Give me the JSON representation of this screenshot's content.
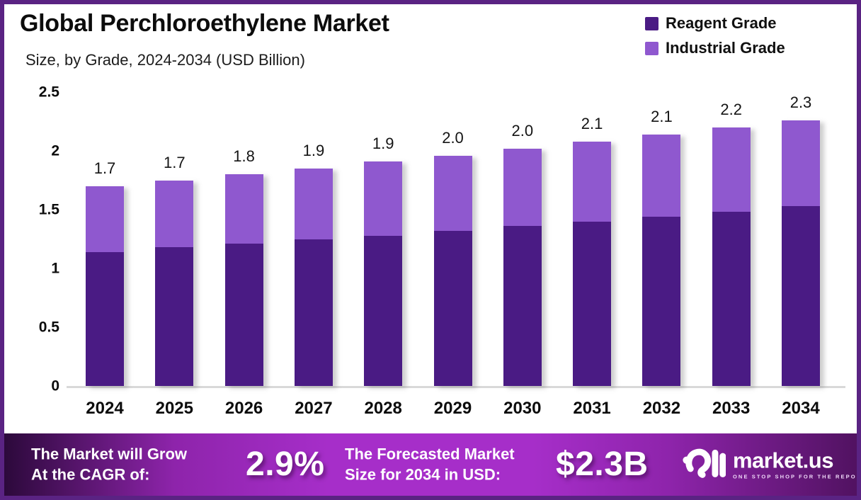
{
  "header": {
    "title": "Global Perchloroethylene Market",
    "subtitle": "Size, by Grade, 2024-2034 (USD Billion)"
  },
  "legend": [
    {
      "label": "Reagent Grade",
      "color": "#4a1b84"
    },
    {
      "label": "Industrial Grade",
      "color": "#8f58cf"
    }
  ],
  "chart_data": {
    "type": "bar",
    "stacked": true,
    "title": "Global Perchloroethylene Market",
    "subtitle": "Size, by Grade, 2024-2034 (USD Billion)",
    "xlabel": "",
    "ylabel": "USD Billion",
    "categories": [
      "2024",
      "2025",
      "2026",
      "2027",
      "2028",
      "2029",
      "2030",
      "2031",
      "2032",
      "2033",
      "2034"
    ],
    "series": [
      {
        "name": "Reagent Grade",
        "color": "#4a1b84",
        "values": [
          1.14,
          1.18,
          1.21,
          1.25,
          1.28,
          1.32,
          1.36,
          1.4,
          1.44,
          1.48,
          1.53
        ]
      },
      {
        "name": "Industrial Grade",
        "color": "#8f58cf",
        "values": [
          0.56,
          0.57,
          0.59,
          0.6,
          0.63,
          0.64,
          0.66,
          0.68,
          0.7,
          0.72,
          0.73
        ]
      }
    ],
    "total_labels": [
      "1.7",
      "1.7",
      "1.8",
      "1.9",
      "1.9",
      "2.0",
      "2.0",
      "2.1",
      "2.1",
      "2.2",
      "2.3"
    ],
    "y_ticks": [
      0,
      0.5,
      1,
      1.5,
      2,
      2.5
    ],
    "y_tick_labels": [
      "0",
      "0.5",
      "1",
      "1.5",
      "2",
      "2.5"
    ],
    "ylim": [
      0,
      2.5
    ],
    "grid": false,
    "legend_position": "top-right"
  },
  "banner": {
    "cagr_label_line1": "The Market will Grow",
    "cagr_label_line2": "At the CAGR of:",
    "cagr_value": "2.9%",
    "forecast_label_line1": "The Forecasted Market",
    "forecast_label_line2": "Size for 2034 in USD:",
    "forecast_value": "$2.3B",
    "logo": {
      "name": "market.us",
      "tagline": "ONE STOP SHOP FOR THE REPORTS"
    }
  },
  "colors": {
    "border": "#5a2383",
    "reagent_bar": "#4a1b84",
    "industrial_bar": "#8f58cf",
    "axis_line": "#d9d9d9",
    "banner_gradient_left": "#2c093b",
    "banner_gradient_mid": "#a62ec9",
    "banner_gradient_right": "#511261",
    "banner_text": "#ffffff"
  }
}
